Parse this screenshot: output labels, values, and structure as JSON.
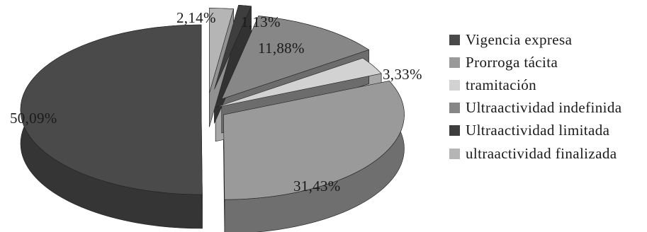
{
  "chart_data": {
    "type": "pie",
    "style": "3d-exploded",
    "title": "",
    "legend_position": "right",
    "slices": [
      {
        "label": "Vigencia expresa",
        "value": 50.09,
        "value_label": "50,09%",
        "color": "#4a4a4a"
      },
      {
        "label": "Prorroga tácita",
        "value": 31.43,
        "value_label": "31,43%",
        "color": "#9a9a9a"
      },
      {
        "label": "tramitación",
        "value": 3.33,
        "value_label": "3,33%",
        "color": "#d2d2d2"
      },
      {
        "label": "Ultraactividad indefinida",
        "value": 11.88,
        "value_label": "11,88%",
        "color": "#878787"
      },
      {
        "label": "Ultraactividad limitada",
        "value": 1.13,
        "value_label": "1,13%",
        "color": "#3e3e3e"
      },
      {
        "label": "ultraactividad finalizada",
        "value": 2.14,
        "value_label": "2,14%",
        "color": "#b5b5b5"
      }
    ]
  }
}
